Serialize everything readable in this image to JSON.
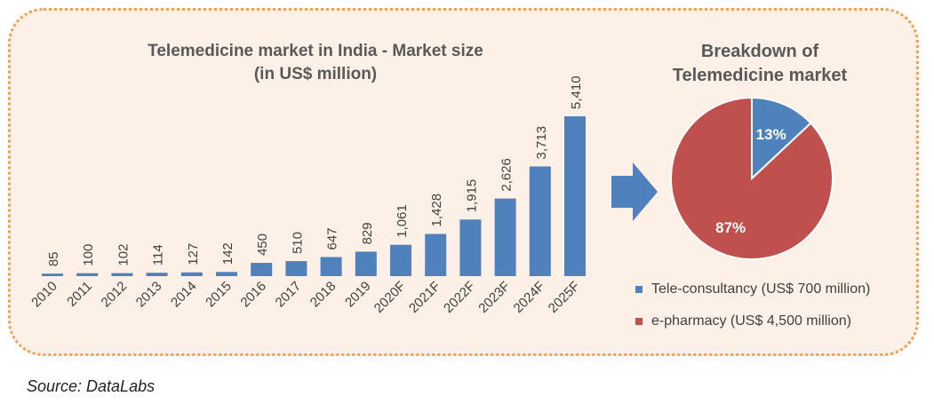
{
  "source": "Source: DataLabs",
  "chart_data": [
    {
      "type": "bar",
      "title_line1": "Telemedicine market in India - Market size",
      "title_line2": "(in US$ million)",
      "categories": [
        "2010",
        "2011",
        "2012",
        "2013",
        "2014",
        "2015",
        "2016",
        "2017",
        "2018",
        "2019",
        "2020F",
        "2021F",
        "2022F",
        "2023F",
        "2024F",
        "2025F"
      ],
      "values": [
        85,
        100,
        102,
        114,
        127,
        142,
        450,
        510,
        647,
        829,
        1061,
        1428,
        1915,
        2626,
        3713,
        5410
      ],
      "labels": [
        "85",
        "100",
        "102",
        "114",
        "127",
        "142",
        "450",
        "510",
        "647",
        "829",
        "1,061",
        "1,428",
        "1,915",
        "2,626",
        "3,713",
        "5,410"
      ],
      "ylim": [
        0,
        5410
      ],
      "color": "#4f81bd"
    },
    {
      "type": "pie",
      "title_line1": "Breakdown of",
      "title_line2": "Telemedicine market",
      "slices": [
        {
          "name": "Tele-consultancy (US$ 700 million)",
          "value": 13,
          "label": "13%",
          "color": "#4f81bd"
        },
        {
          "name": "e-pharmacy (US$ 4,500 million)",
          "value": 87,
          "label": "87%",
          "color": "#c0504d"
        }
      ]
    }
  ],
  "colors": {
    "arrow": "#4f81bd",
    "border": "#f0a050",
    "panel": "#fdf0e6"
  }
}
